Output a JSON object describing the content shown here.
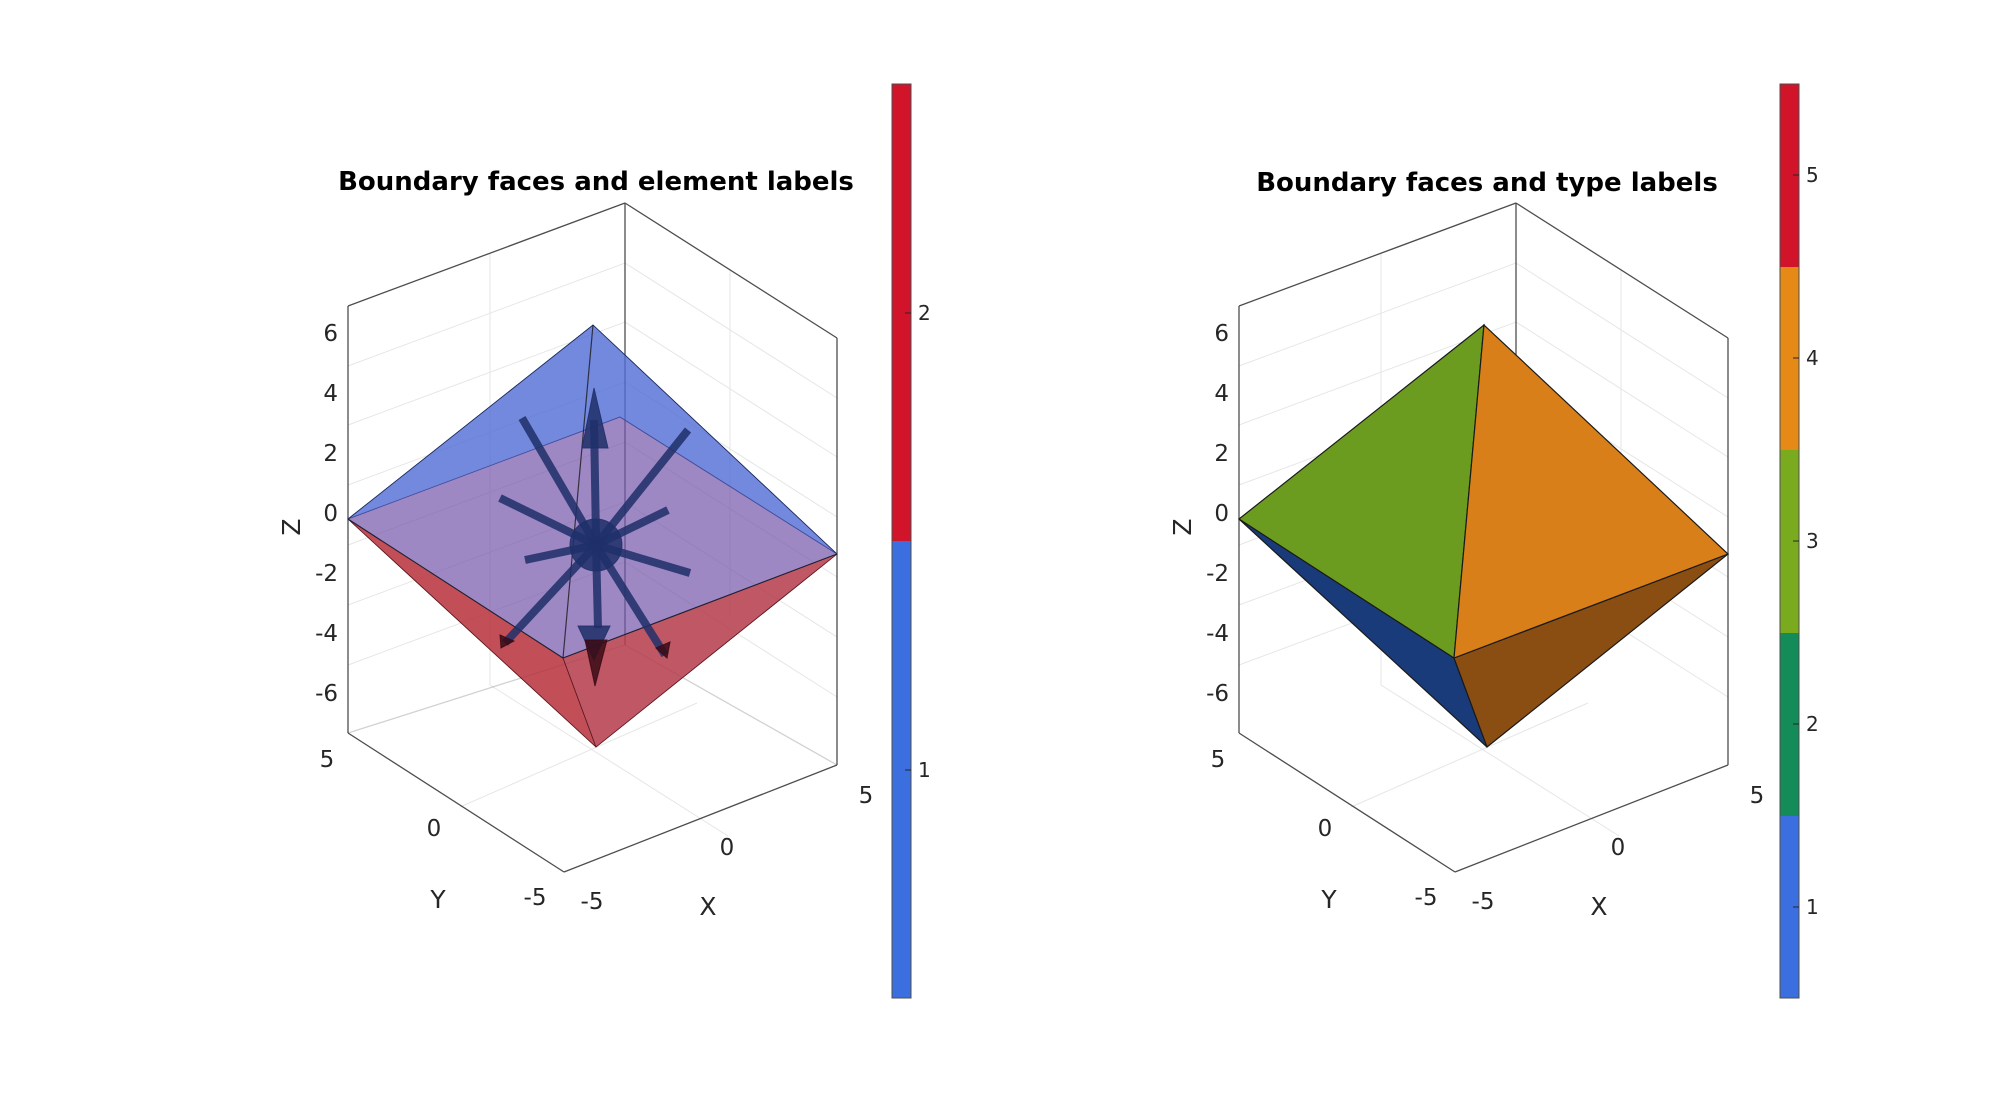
{
  "chart_data": [
    {
      "type": "3d-surface",
      "title": "Boundary faces and element labels",
      "xlabel": "X",
      "ylabel": "Y",
      "zlabel": "Z",
      "xlim": [
        -5,
        5
      ],
      "ylim": [
        -5,
        5
      ],
      "zlim": [
        -7,
        7
      ],
      "x_ticks": [
        "-5",
        "0",
        "5"
      ],
      "y_ticks": [
        "-5",
        "0",
        "5"
      ],
      "z_ticks": [
        "-6",
        "-4",
        "-2",
        "0",
        "2",
        "4",
        "6"
      ],
      "grid": true,
      "faces": [
        {
          "name": "upper half",
          "label": 1,
          "color": "#3b6fe0",
          "opacity": 0.7
        },
        {
          "name": "lower half",
          "label": 2,
          "color": "#d2142a",
          "opacity": 0.7
        }
      ],
      "normals": "arrows drawn from the center toward each face",
      "colorbar": {
        "ticks": [
          "1",
          "2"
        ],
        "colors": [
          "#3b6fe0",
          "#d2142a"
        ]
      }
    },
    {
      "type": "3d-surface",
      "title": "Boundary faces and type labels",
      "xlabel": "X",
      "ylabel": "Y",
      "zlabel": "Z",
      "xlim": [
        -5,
        5
      ],
      "ylim": [
        -5,
        5
      ],
      "zlim": [
        -7,
        7
      ],
      "x_ticks": [
        "-5",
        "0",
        "5"
      ],
      "y_ticks": [
        "-5",
        "0",
        "5"
      ],
      "z_ticks": [
        "-6",
        "-4",
        "-2",
        "0",
        "2",
        "4",
        "6"
      ],
      "grid": true,
      "faces": [
        {
          "name": "upper left",
          "label": 3,
          "color": "#6b9b1f"
        },
        {
          "name": "upper right",
          "label": 4,
          "color": "#e08818"
        },
        {
          "name": "lower left",
          "label": 1,
          "color": "#1a3b7a"
        },
        {
          "name": "lower right",
          "label": 4,
          "color": "#8a4e12"
        }
      ],
      "colorbar": {
        "ticks": [
          "1",
          "2",
          "3",
          "4",
          "5"
        ],
        "colors": [
          "#3b6fe0",
          "#138c5a",
          "#7aab1e",
          "#e58a16",
          "#d2142a"
        ]
      }
    }
  ]
}
